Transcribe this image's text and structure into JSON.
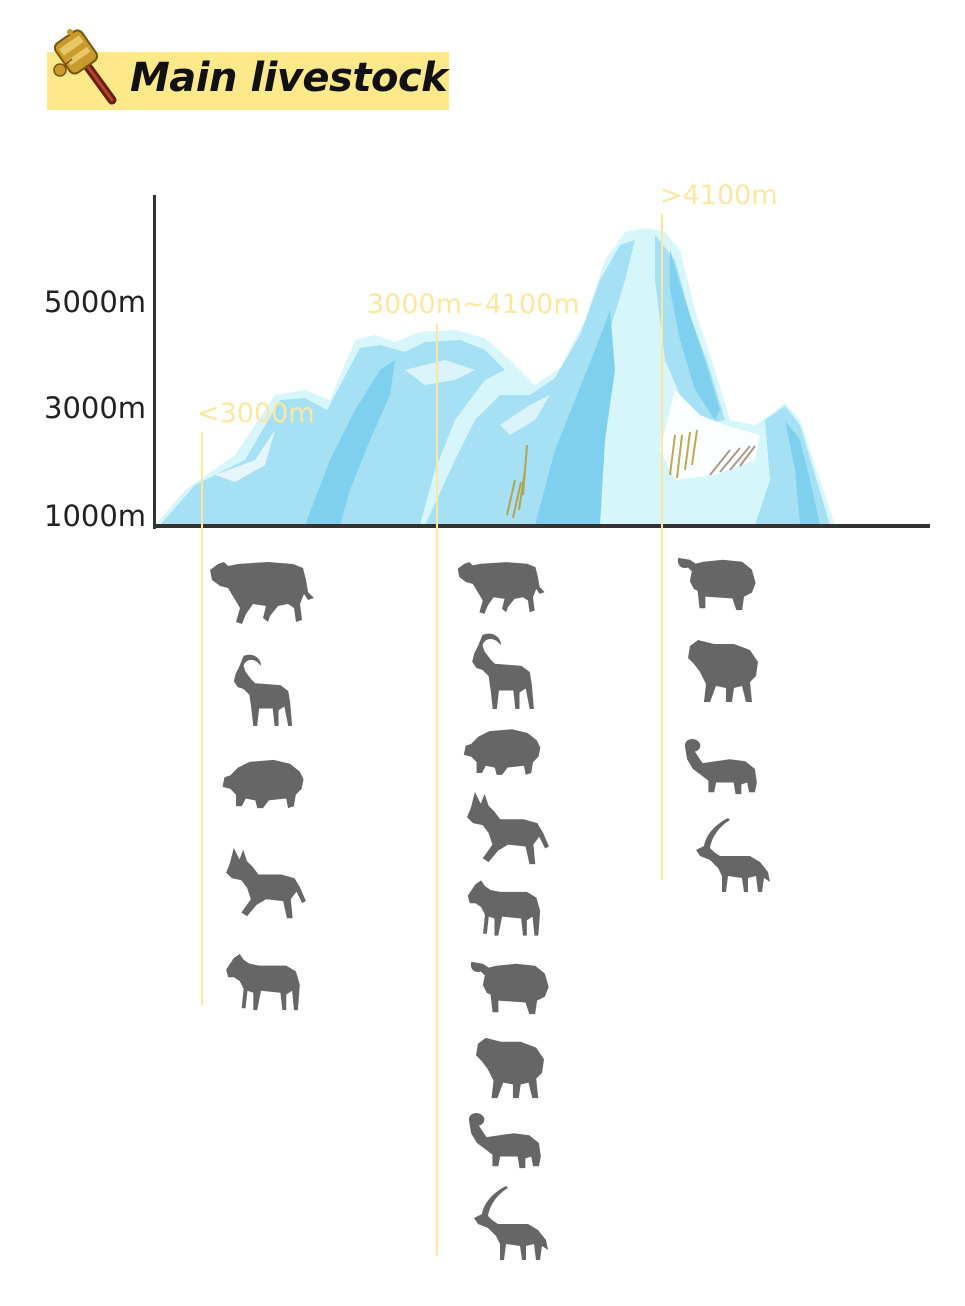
{
  "title": "Main livestock",
  "altitude_axis": [
    {
      "label": "5000m"
    },
    {
      "label": "3000m"
    },
    {
      "label": "1000m"
    }
  ],
  "zones": [
    {
      "label": "<3000m",
      "livestock_icons": [
        "cattle-icon",
        "goat-icon",
        "pig-icon",
        "donkey-icon",
        "horse-icon"
      ]
    },
    {
      "label": "3000m~4100m",
      "livestock_icons": [
        "cattle-icon",
        "goat-icon",
        "pig-icon",
        "donkey-icon",
        "horse-icon",
        "yak-icon",
        "sheep-icon",
        "ram-icon",
        "antelope-icon"
      ]
    },
    {
      "label": ">4100m",
      "livestock_icons": [
        "yak-icon",
        "sheep-icon",
        "ram-icon",
        "antelope-icon"
      ]
    }
  ],
  "colors": {
    "banner": "#fde98a",
    "zone_label": "#fce7a0",
    "axis": "#333333",
    "silhouette": "#666666",
    "ice_light": "#d6f6fb",
    "ice_mid": "#a6e0f4",
    "ice_dark": "#7fd0ef"
  }
}
